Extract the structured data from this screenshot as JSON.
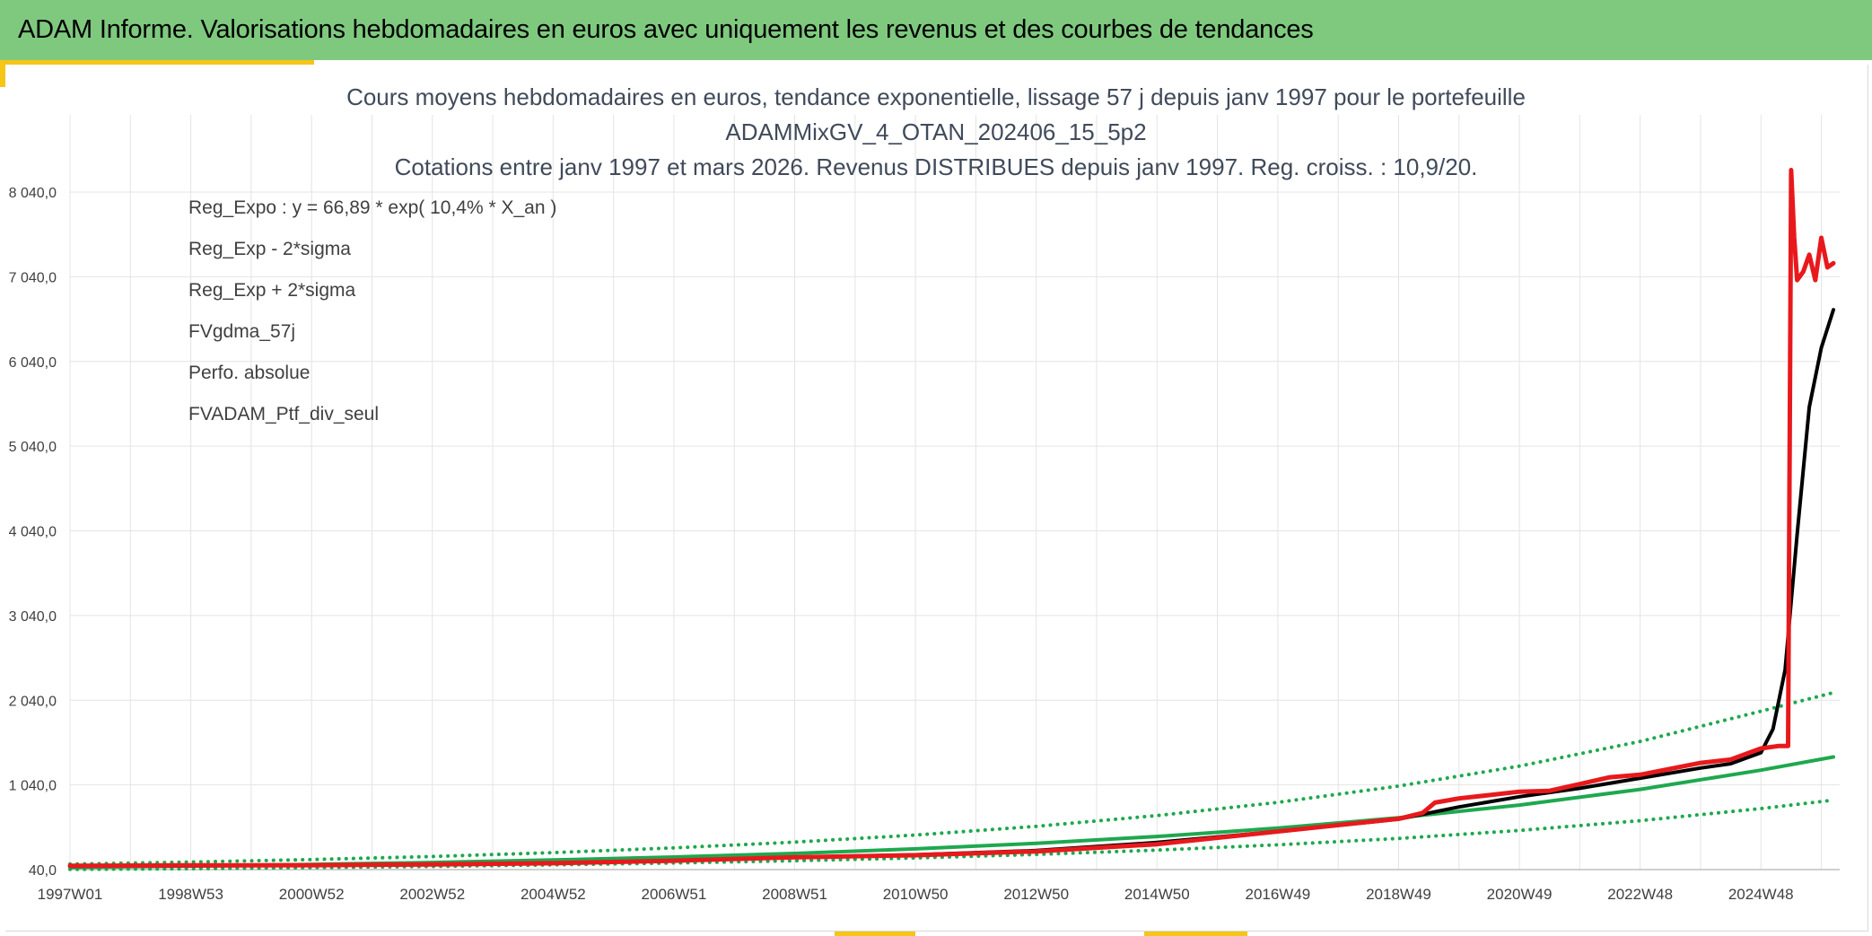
{
  "header": {
    "title": "ADAM Informe. Valorisations hebdomadaires en euros avec uniquement les revenus et des courbes de tendances"
  },
  "chart_data": {
    "type": "line",
    "title_lines": [
      "Cours moyens hebdomadaires en euros, tendance exponentielle, lissage 57 j depuis janv 1997 pour le portefeuille",
      "ADAMMixGV_4_OTAN_202406_15_5p2",
      "Cotations entre janv 1997 et mars 2026. Revenus DISTRIBUES depuis janv 1997. Reg. croiss. : 10,9/20."
    ],
    "xlabel": "",
    "ylabel": "",
    "x_start_year": 1997.0,
    "x_end_year": 2026.2,
    "xlim": [
      1997.0,
      2026.3
    ],
    "ylim": [
      40,
      8600
    ],
    "y_ticks": [
      40,
      1040,
      2040,
      3040,
      4040,
      5040,
      6040,
      7040,
      8040
    ],
    "y_tick_labels": [
      "40,0",
      "1 040,0",
      "2 040,0",
      "3 040,0",
      "4 040,0",
      "5 040,0",
      "6 040,0",
      "7 040,0",
      "8 040,0"
    ],
    "x_tick_labels": [
      "1997W01",
      "1998W53",
      "2000W52",
      "2002W52",
      "2004W52",
      "2006W51",
      "2008W51",
      "2010W50",
      "2012W50",
      "2014W50",
      "2016W49",
      "2018W49",
      "2020W49",
      "2022W48",
      "2024W48"
    ],
    "x_tick_years": [
      1997.0,
      1999.0,
      2001.0,
      2003.0,
      2005.0,
      2007.0,
      2009.0,
      2011.0,
      2013.0,
      2015.0,
      2017.0,
      2019.0,
      2021.0,
      2023.0,
      2025.0
    ],
    "grid": true,
    "legend_position": "top-left",
    "series": [
      {
        "name": "Reg_Expo : y = 66,89 * exp( 10,4% *  X_an )",
        "color": "#1fa84f",
        "style": "solid",
        "width": 4,
        "x": [
          1997.0,
          1999.0,
          2001.0,
          2003.0,
          2005.0,
          2007.0,
          2009.0,
          2011.0,
          2013.0,
          2015.0,
          2017.0,
          2019.0,
          2021.0,
          2023.0,
          2025.0,
          2026.2
        ],
        "y": [
          67,
          82,
          101,
          124,
          153,
          188,
          231,
          285,
          350,
          431,
          530,
          652,
          802,
          987,
          1214,
          1370
        ]
      },
      {
        "name": "Reg_Exp - 2*sigma",
        "color": "#1fa84f",
        "style": "dotted",
        "width": 4,
        "x": [
          1997.0,
          1999.0,
          2001.0,
          2003.0,
          2005.0,
          2007.0,
          2009.0,
          2011.0,
          2013.0,
          2015.0,
          2017.0,
          2019.0,
          2021.0,
          2023.0,
          2025.0,
          2026.2
        ],
        "y": [
          42,
          51,
          63,
          78,
          96,
          118,
          145,
          178,
          219,
          270,
          332,
          408,
          502,
          618,
          760,
          860
        ]
      },
      {
        "name": "Reg_Exp + 2*sigma",
        "color": "#1fa84f",
        "style": "dotted",
        "width": 4,
        "x": [
          1997.0,
          1999.0,
          2001.0,
          2003.0,
          2005.0,
          2007.0,
          2009.0,
          2011.0,
          2013.0,
          2015.0,
          2017.0,
          2019.0,
          2021.0,
          2023.0,
          2025.0,
          2026.2
        ],
        "y": [
          105,
          129,
          159,
          195,
          240,
          296,
          364,
          448,
          551,
          678,
          834,
          1026,
          1262,
          1553,
          1910,
          2130
        ]
      },
      {
        "name": "FVgdma_57j",
        "color": "#000000",
        "style": "solid",
        "width": 4,
        "x": [
          1997.0,
          1999.0,
          2001.0,
          2003.0,
          2005.0,
          2007.0,
          2009.0,
          2011.0,
          2013.0,
          2015.0,
          2017.0,
          2019.0,
          2020.0,
          2021.0,
          2022.0,
          2023.0,
          2024.0,
          2024.5,
          2025.0,
          2025.2,
          2025.4,
          2025.6,
          2025.8,
          2026.0,
          2026.2
        ],
        "y": [
          80,
          85,
          90,
          100,
          115,
          145,
          185,
          215,
          265,
          360,
          490,
          635,
          780,
          900,
          1000,
          1120,
          1240,
          1290,
          1420,
          1700,
          2400,
          4000,
          5500,
          6200,
          6650
        ]
      },
      {
        "name": "Perfo. absolue",
        "color": "#e8191c",
        "style": "dotted",
        "width": 4,
        "x": [],
        "y": []
      },
      {
        "name": "FVADAM_Ptf_div_seul",
        "color": "#e8191c",
        "style": "solid",
        "width": 5,
        "x": [
          1997.0,
          1999.0,
          2001.0,
          2003.0,
          2005.0,
          2007.0,
          2009.0,
          2011.0,
          2013.0,
          2015.0,
          2017.0,
          2019.0,
          2019.4,
          2019.6,
          2020.0,
          2020.5,
          2021.0,
          2021.5,
          2022.0,
          2022.5,
          2023.0,
          2023.5,
          2024.0,
          2024.5,
          2025.0,
          2025.3,
          2025.45,
          2025.5,
          2025.55,
          2025.6,
          2025.7,
          2025.8,
          2025.9,
          2026.0,
          2026.1,
          2026.2
        ],
        "y": [
          85,
          90,
          92,
          100,
          115,
          145,
          185,
          210,
          255,
          340,
          490,
          640,
          710,
          830,
          880,
          920,
          960,
          970,
          1050,
          1130,
          1160,
          1230,
          1300,
          1340,
          1470,
          1500,
          1500,
          8300,
          7500,
          7000,
          7100,
          7300,
          7000,
          7500,
          7150,
          7200
        ]
      }
    ]
  }
}
